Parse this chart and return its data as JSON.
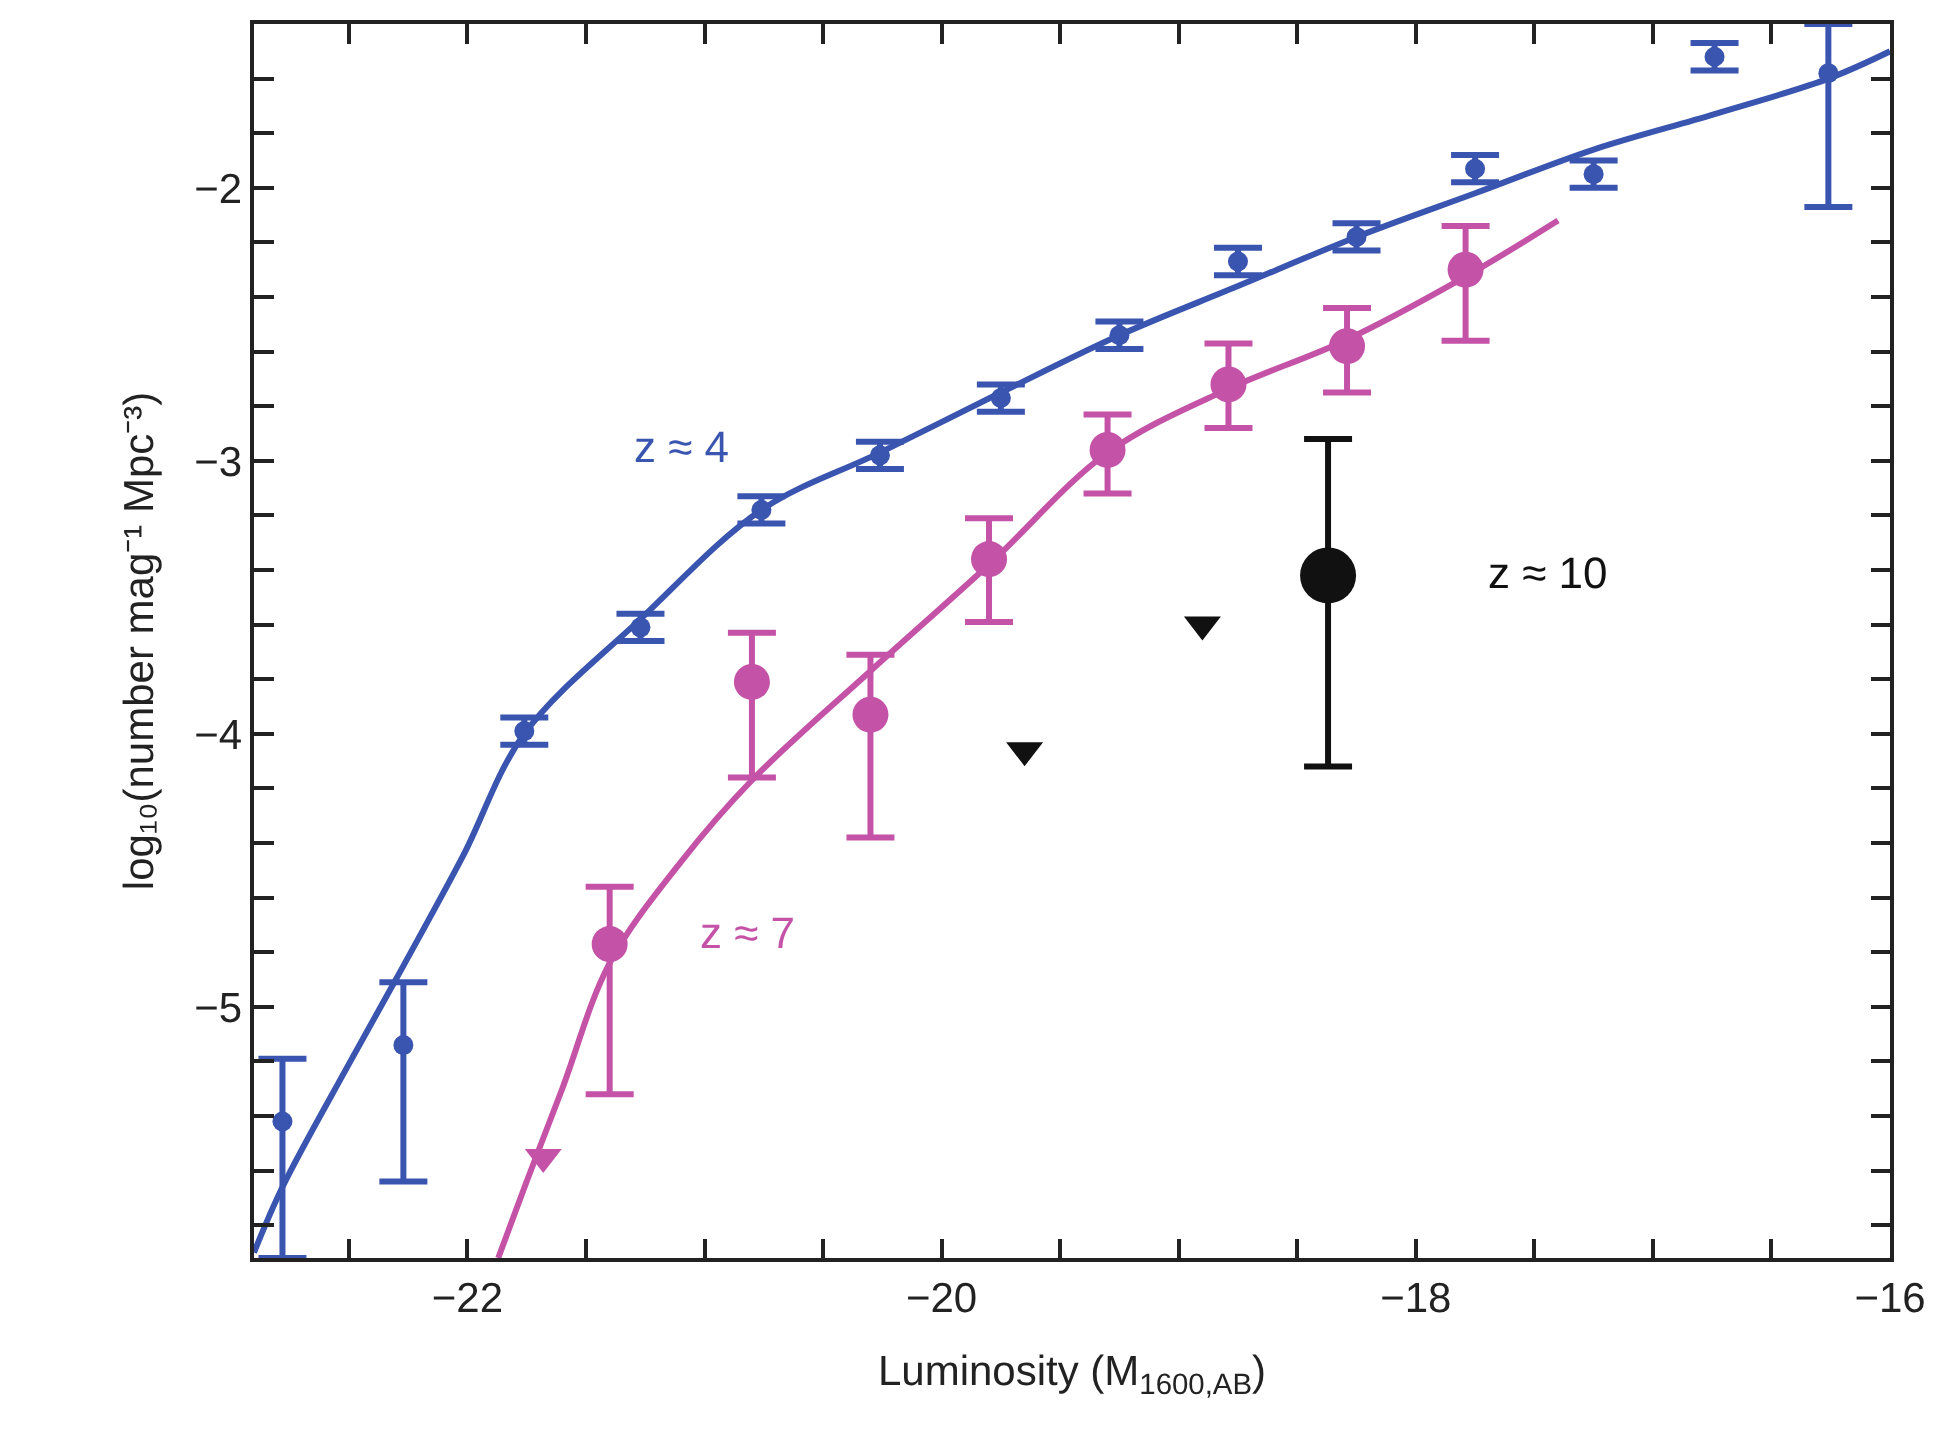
{
  "chart_data": {
    "type": "scatter",
    "xlabel": "Luminosity (M$_{1600,AB}$)",
    "ylabel": "log₁₀(number mag⁻¹ Mpc⁻³)",
    "xlim": [
      -22.9,
      -16
    ],
    "xticks": [
      {
        "value": -22.5,
        "label": null
      },
      -22,
      {
        "value": -21.5,
        "label": null
      },
      {
        "value": -21,
        "label": null
      },
      {
        "value": -20.5,
        "label": null
      },
      -20,
      {
        "value": -19.5,
        "label": null
      },
      {
        "value": -19,
        "label": null
      },
      {
        "value": -18.5,
        "label": null
      },
      -18,
      {
        "value": -17.5,
        "label": null
      },
      {
        "value": -17,
        "label": null
      },
      {
        "value": -16.5,
        "label": null
      },
      -16
    ],
    "ylim": [
      -5.92,
      -1.4
    ],
    "yticks": [
      {
        "value": -5.8,
        "label": null
      },
      {
        "value": -5.6,
        "label": null
      },
      {
        "value": -5.4,
        "label": null
      },
      {
        "value": -5.2,
        "label": null
      },
      -5,
      {
        "value": -4.8,
        "label": null
      },
      {
        "value": -4.6,
        "label": null
      },
      {
        "value": -4.4,
        "label": null
      },
      {
        "value": -4.2,
        "label": null
      },
      -4,
      {
        "value": -3.8,
        "label": null
      },
      {
        "value": -3.6,
        "label": null
      },
      {
        "value": -3.4,
        "label": null
      },
      {
        "value": -3.2,
        "label": null
      },
      -3,
      {
        "value": -2.8,
        "label": null
      },
      {
        "value": -2.6,
        "label": null
      },
      {
        "value": -2.4,
        "label": null
      },
      {
        "value": -2.2,
        "label": null
      },
      -2,
      {
        "value": -1.8,
        "label": null
      },
      {
        "value": -1.6,
        "label": null
      }
    ],
    "grid": false,
    "series": [
      {
        "marker": "circle",
        "color": "#3a55b0",
        "x": [
          -22.78,
          -22.27,
          -21.76,
          -21.27,
          -20.76,
          -20.26,
          -19.75,
          -19.25,
          -18.75,
          -18.25,
          -17.75,
          -17.25,
          -16.74,
          -16.26
        ],
        "values": [
          -5.42,
          -5.14,
          -3.99,
          -3.61,
          -3.18,
          -2.98,
          -2.77,
          -2.54,
          -2.27,
          -2.18,
          -1.93,
          -1.95,
          -1.52,
          -1.58
        ],
        "errors": [
          [
            -5.92,
            -5.19
          ],
          [
            -5.64,
            -4.91
          ],
          0.05,
          0.05,
          0.05,
          0.05,
          0.05,
          0.05,
          0.05,
          0.05,
          0.05,
          0.05,
          0.05,
          [
            -2.07,
            -1.4
          ]
        ]
      },
      {
        "marker": "circle",
        "color": "#c453a8",
        "x": [
          -21.4,
          -20.8,
          -20.3,
          -19.8,
          -19.3,
          -18.79,
          -18.29,
          -17.79
        ],
        "values": [
          -4.77,
          -3.81,
          -3.93,
          -3.36,
          -2.96,
          -2.72,
          -2.58,
          -2.3
        ],
        "errors": [
          [
            -5.32,
            -4.56
          ],
          [
            -4.16,
            -3.63
          ],
          [
            -4.38,
            -3.71
          ],
          [
            -3.59,
            -3.21
          ],
          [
            -3.12,
            -2.83
          ],
          [
            -2.88,
            -2.57
          ],
          [
            -2.75,
            -2.44
          ],
          [
            -2.56,
            -2.14
          ]
        ]
      },
      {
        "marker": "circle",
        "color": "#111111",
        "x": [
          -18.37
        ],
        "values": [
          -3.42
        ],
        "errors": [
          [
            -4.12,
            -2.92
          ]
        ]
      },
      {
        "marker": "triangle",
        "colors": [
          "#c453a8",
          "#111111",
          "#111111"
        ],
        "x": [
          -21.68,
          -19.65,
          -18.9
        ],
        "values": [
          -5.55,
          -4.06,
          -3.6
        ]
      },
      {
        "type": "line",
        "marker": "none",
        "line_style": "solid",
        "color": "#3a55b0",
        "x": [
          -22.9,
          -22.78,
          -22.5,
          -22.27,
          -22.02,
          -21.76,
          -21.27,
          -20.76,
          -20.26,
          -19.75,
          -19.25,
          -18.75,
          -18.25,
          -17.75,
          -17.25,
          -16.74,
          -16.26,
          -16.0
        ],
        "values": [
          -5.9,
          -5.66,
          -5.21,
          -4.85,
          -4.45,
          -4.0,
          -3.58,
          -3.18,
          -2.97,
          -2.75,
          -2.54,
          -2.36,
          -2.18,
          -2.02,
          -1.86,
          -1.73,
          -1.6,
          -1.5
        ]
      },
      {
        "type": "line",
        "marker": "none",
        "line_style": "solid",
        "color": "#c453a8",
        "x": [
          -21.87,
          -21.75,
          -21.6,
          -21.4,
          -21.1,
          -20.8,
          -20.3,
          -19.8,
          -19.3,
          -18.8,
          -18.3,
          -17.8,
          -17.4
        ],
        "values": [
          -5.92,
          -5.64,
          -5.3,
          -4.84,
          -4.47,
          -4.17,
          -3.77,
          -3.38,
          -2.97,
          -2.74,
          -2.56,
          -2.33,
          -2.12
        ]
      }
    ],
    "annotations": [
      "z ≈ 4",
      "z ≈ 7",
      "z ≈ 10"
    ]
  }
}
